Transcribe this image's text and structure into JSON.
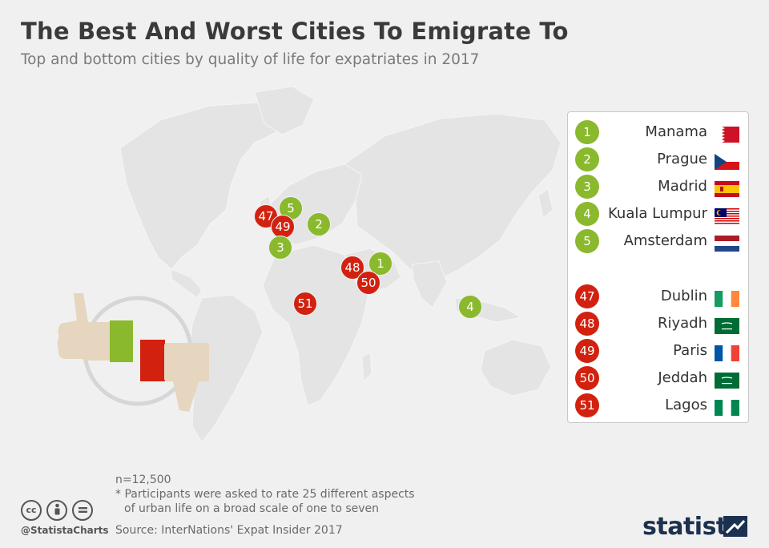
{
  "title": "The Best And Worst Cities To Emigrate To",
  "subtitle": "Top and bottom cities by quality of life for expatriates in 2017",
  "colors": {
    "best": "#8ab92d",
    "worst": "#d2220f",
    "land": "#e6e6e6",
    "background": "#f0f0f0"
  },
  "legend": {
    "best": [
      {
        "rank": "1",
        "city": "Manama",
        "flag": "bahrain-flag"
      },
      {
        "rank": "2",
        "city": "Prague",
        "flag": "czech-flag"
      },
      {
        "rank": "3",
        "city": "Madrid",
        "flag": "spain-flag"
      },
      {
        "rank": "4",
        "city": "Kuala Lumpur",
        "flag": "malaysia-flag"
      },
      {
        "rank": "5",
        "city": "Amsterdam",
        "flag": "netherlands-flag"
      }
    ],
    "worst": [
      {
        "rank": "47",
        "city": "Dublin",
        "flag": "ireland-flag"
      },
      {
        "rank": "48",
        "city": "Riyadh",
        "flag": "saudi-flag"
      },
      {
        "rank": "49",
        "city": "Paris",
        "flag": "france-flag"
      },
      {
        "rank": "50",
        "city": "Jeddah",
        "flag": "saudi-flag"
      },
      {
        "rank": "51",
        "city": "Lagos",
        "flag": "nigeria-flag"
      }
    ]
  },
  "footnotes": {
    "n": "n=12,500",
    "note_line1": "* Participants were asked to rate 25 different aspects",
    "note_line2": "of urban life on a broad scale of one to seven",
    "source": "Source: InterNations' Expat Insider 2017"
  },
  "handle": "@StatistaCharts",
  "brand": "statista",
  "icons": [
    "thumbs-up-icon",
    "thumbs-down-icon",
    "cc-icon",
    "by-icon",
    "nd-icon",
    "statista-logo-icon"
  ]
}
